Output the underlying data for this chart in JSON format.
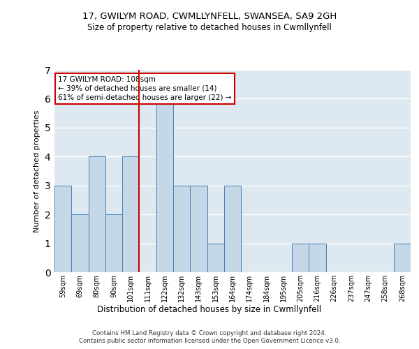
{
  "title1": "17, GWILYM ROAD, CWMLLYNFELL, SWANSEA, SA9 2GH",
  "title2": "Size of property relative to detached houses in Cwmllynfell",
  "xlabel": "Distribution of detached houses by size in Cwmllynfell",
  "ylabel": "Number of detached properties",
  "footer1": "Contains HM Land Registry data © Crown copyright and database right 2024.",
  "footer2": "Contains public sector information licensed under the Open Government Licence v3.0.",
  "annotation_line1": "17 GWILYM ROAD: 108sqm",
  "annotation_line2": "← 39% of detached houses are smaller (14)",
  "annotation_line3": "61% of semi-detached houses are larger (22) →",
  "categories": [
    "59sqm",
    "69sqm",
    "80sqm",
    "90sqm",
    "101sqm",
    "111sqm",
    "122sqm",
    "132sqm",
    "143sqm",
    "153sqm",
    "164sqm",
    "174sqm",
    "184sqm",
    "195sqm",
    "205sqm",
    "216sqm",
    "226sqm",
    "237sqm",
    "247sqm",
    "258sqm",
    "268sqm"
  ],
  "values": [
    3,
    2,
    4,
    2,
    4,
    0,
    6,
    3,
    3,
    1,
    3,
    0,
    0,
    0,
    1,
    1,
    0,
    0,
    0,
    0,
    1
  ],
  "bar_color": "#c5d8e8",
  "bar_edge_color": "#4a7fb5",
  "vline_color": "#cc0000",
  "annotation_box_color": "#cc0000",
  "background_color": "#dde8f0",
  "ylim": [
    0,
    7
  ],
  "yticks": [
    0,
    1,
    2,
    3,
    4,
    5,
    6,
    7
  ],
  "vline_x": 4.5,
  "title1_fontsize": 9.5,
  "title2_fontsize": 8.5,
  "ylabel_fontsize": 8,
  "xlabel_fontsize": 8.5,
  "tick_fontsize": 7,
  "footer_fontsize": 6.2
}
